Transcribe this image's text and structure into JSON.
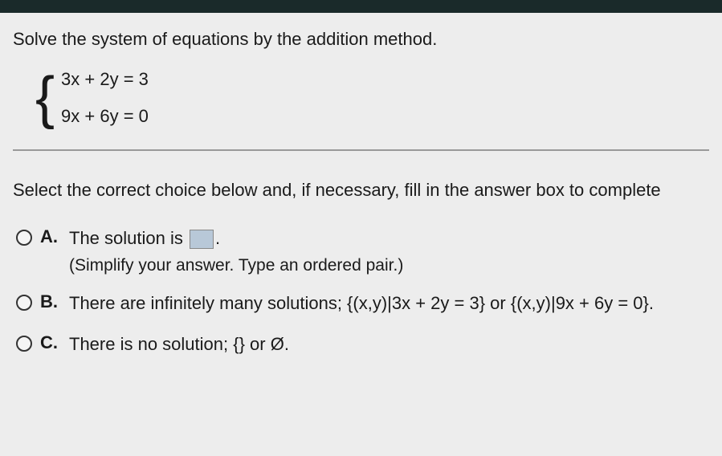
{
  "question": {
    "prompt": "Solve the system of equations by the addition method.",
    "equations": {
      "eq1": "3x + 2y = 3",
      "eq2": "9x + 6y = 0"
    }
  },
  "instruction": "Select the correct choice below and, if necessary, fill in the answer box to complete",
  "choices": {
    "a": {
      "letter": "A.",
      "text_before": "The solution is ",
      "text_after": ".",
      "subtext": "(Simplify your answer. Type an ordered pair.)"
    },
    "b": {
      "letter": "B.",
      "text": "There are infinitely many solutions; {(x,y)|3x + 2y = 3} or {(x,y)|9x + 6y = 0}."
    },
    "c": {
      "letter": "C.",
      "text": "There is no solution; {} or Ø."
    }
  },
  "colors": {
    "topbar": "#1a2a2a",
    "background": "#ededed",
    "text": "#1a1a1a",
    "divider": "#999999",
    "answer_box_bg": "#b8c8d8"
  },
  "typography": {
    "base_fontsize": 22,
    "font_family": "Arial"
  }
}
